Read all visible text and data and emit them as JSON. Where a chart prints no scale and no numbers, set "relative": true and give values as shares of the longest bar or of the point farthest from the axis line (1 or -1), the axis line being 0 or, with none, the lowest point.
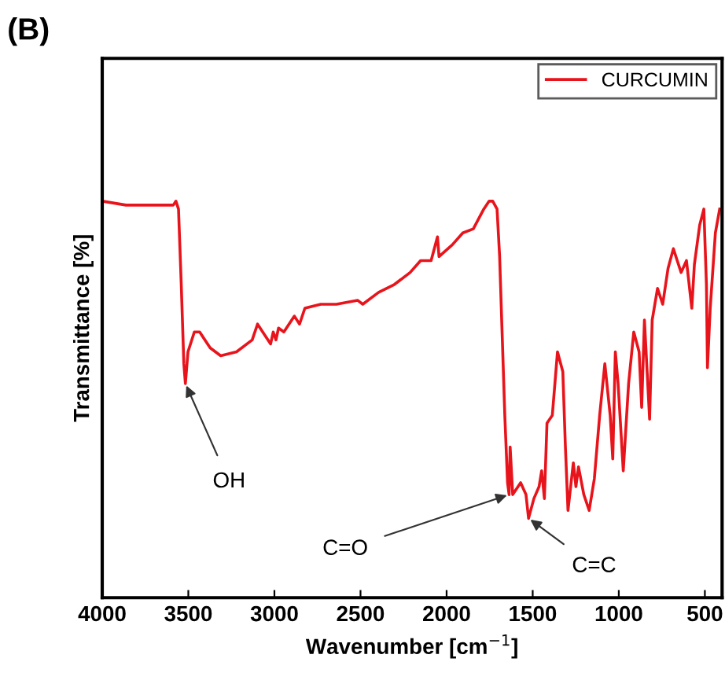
{
  "chart_data": {
    "type": "line",
    "title": "(B)",
    "xlabel": "Wavenumber [cm$^{−1}$]",
    "ylabel": "Transmittance [%]",
    "relative": true,
    "tick_labels": "x",
    "grid": false,
    "legend": "top right",
    "marker": "none",
    "line_style": "solid",
    "xlim": [
      4000,
      400
    ],
    "xticks": [
      4000,
      3500,
      3000,
      2500,
      2000,
      1500,
      1000,
      500
    ],
    "annotations": [
      {
        "text": "OH",
        "x": 3517,
        "y": 0.54
      },
      {
        "text": "C=O",
        "x": 1637,
        "y": 0.26
      },
      {
        "text": "C=C",
        "x": 1524,
        "y": 0.2
      }
    ],
    "series": [
      {
        "name": "CURCUMIN",
        "color": "#e8141c",
        "x": [
          4000,
          3862,
          3740,
          3587,
          3572,
          3557,
          3541,
          3526,
          3517,
          3502,
          3465,
          3434,
          3373,
          3312,
          3220,
          3129,
          3098,
          3068,
          3022,
          3007,
          2991,
          2976,
          2945,
          2915,
          2884,
          2854,
          2823,
          2731,
          2640,
          2517,
          2487,
          2395,
          2303,
          2212,
          2151,
          2090,
          2053,
          2044,
          1967,
          1906,
          1845,
          1784,
          1753,
          1732,
          1707,
          1692,
          1677,
          1662,
          1646,
          1637,
          1631,
          1616,
          1570,
          1539,
          1524,
          1493,
          1463,
          1448,
          1432,
          1417,
          1386,
          1356,
          1325,
          1310,
          1295,
          1264,
          1249,
          1234,
          1203,
          1172,
          1142,
          1111,
          1081,
          1050,
          1035,
          1020,
          1004,
          974,
          943,
          913,
          882,
          867,
          851,
          821,
          806,
          775,
          745,
          714,
          683,
          668,
          638,
          607,
          576,
          561,
          530,
          506,
          491,
          485,
          469,
          439,
          414
        ],
        "values": [
          1.0,
          0.99,
          0.99,
          0.99,
          1.0,
          0.98,
          0.79,
          0.59,
          0.54,
          0.62,
          0.67,
          0.67,
          0.63,
          0.61,
          0.62,
          0.65,
          0.69,
          0.67,
          0.64,
          0.67,
          0.65,
          0.68,
          0.67,
          0.69,
          0.71,
          0.69,
          0.73,
          0.74,
          0.74,
          0.75,
          0.74,
          0.77,
          0.79,
          0.82,
          0.85,
          0.85,
          0.91,
          0.86,
          0.89,
          0.92,
          0.93,
          0.98,
          1.0,
          1.0,
          0.98,
          0.86,
          0.66,
          0.46,
          0.29,
          0.26,
          0.38,
          0.26,
          0.29,
          0.26,
          0.2,
          0.25,
          0.28,
          0.32,
          0.25,
          0.44,
          0.46,
          0.62,
          0.57,
          0.38,
          0.22,
          0.34,
          0.28,
          0.33,
          0.26,
          0.22,
          0.3,
          0.46,
          0.59,
          0.46,
          0.35,
          0.62,
          0.54,
          0.32,
          0.54,
          0.67,
          0.62,
          0.48,
          0.7,
          0.45,
          0.7,
          0.78,
          0.74,
          0.83,
          0.88,
          0.86,
          0.82,
          0.85,
          0.73,
          0.84,
          0.94,
          0.98,
          0.79,
          0.58,
          0.73,
          0.92,
          0.98
        ]
      }
    ]
  }
}
